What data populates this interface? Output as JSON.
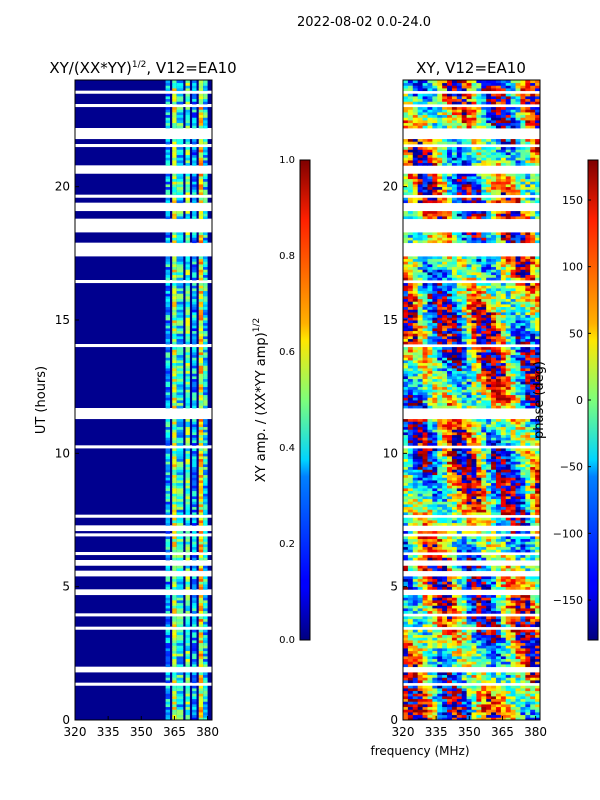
{
  "suptitle": "2022-08-02 0.0-24.0",
  "chart_data": [
    {
      "type": "heatmap",
      "title": "XY/(XX*YY)^1/2, V12=EA10",
      "title_main": "XY/(XX*YY)",
      "title_sup": "1/2",
      "title_tail": ", V12=EA10",
      "xlabel": "",
      "ylabel": "UT (hours)",
      "xlim": [
        320,
        382
      ],
      "ylim": [
        0,
        24
      ],
      "xticks": [
        320,
        335,
        350,
        365,
        380
      ],
      "yticks": [
        0,
        5,
        10,
        15,
        20
      ],
      "colorbar": {
        "label": "XY amp. / (XX*YY amp)^1/2",
        "label_main": "XY amp. / (XX*YY amp)",
        "label_sup": "1/2",
        "range": [
          0.0,
          1.0
        ],
        "ticks": [
          "0.0",
          "0.2",
          "0.4",
          "0.6",
          "0.8",
          "1.0"
        ],
        "colormap": "jet"
      },
      "colors": {
        "background": "#00008f",
        "band": "#1e6cff",
        "hot": "#ffd21a"
      }
    },
    {
      "type": "heatmap",
      "title": "XY, V12=EA10",
      "xlabel": "frequency (MHz)",
      "ylabel": "",
      "xlim": [
        320,
        382
      ],
      "ylim": [
        0,
        24
      ],
      "xticks": [
        320,
        335,
        350,
        365,
        380
      ],
      "yticks": [
        0,
        5,
        10,
        15,
        20
      ],
      "colorbar": {
        "label": "phase (deg)",
        "range": [
          -180,
          180
        ],
        "ticks": [
          "−150",
          "−100",
          "−50",
          "0",
          "50",
          "100",
          "150"
        ],
        "tick_values": [
          -150,
          -100,
          -50,
          0,
          50,
          100,
          150
        ],
        "colormap": "jet"
      }
    }
  ]
}
